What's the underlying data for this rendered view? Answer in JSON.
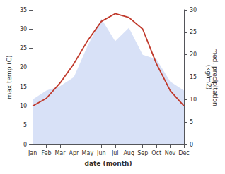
{
  "chart_data": {
    "type": "line",
    "xlabel": "date (month)",
    "ylabel": "max temp (C)",
    "y2label": "med. precipitation\n(kg/m2)",
    "categories": [
      "Jan",
      "Feb",
      "Mar",
      "Apr",
      "May",
      "Jun",
      "Jul",
      "Aug",
      "Sep",
      "Oct",
      "Nov",
      "Dec"
    ],
    "series": [
      {
        "type": "area",
        "axis": "y2",
        "color": "#b8c8f0",
        "values": [
          10,
          12,
          13,
          15,
          22,
          28,
          23,
          26,
          20,
          19,
          14,
          12
        ]
      },
      {
        "type": "line",
        "color": "#c0392b",
        "values": [
          10,
          12,
          16,
          21,
          27,
          32,
          34,
          33,
          30,
          21,
          14,
          10
        ]
      }
    ],
    "ylim": [
      0,
      35
    ],
    "yticks": [
      0,
      5,
      10,
      15,
      20,
      25,
      30,
      35
    ],
    "y2lim": [
      0,
      30
    ],
    "y2ticks": [
      0,
      5,
      10,
      15,
      20,
      25,
      30
    ],
    "grid": false
  }
}
